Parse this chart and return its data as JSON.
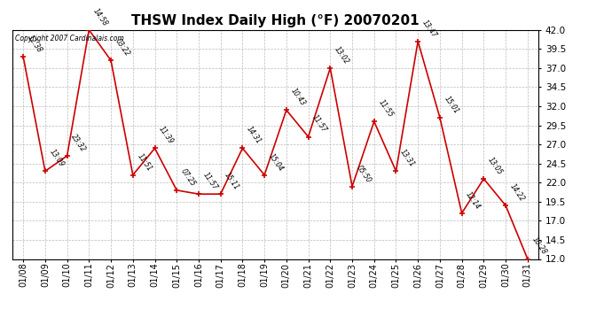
{
  "title": "THSW Index Daily High (°F) 20070201",
  "copyright": "Copyright 2007 Cardinalais.com",
  "dates": [
    "01/08",
    "01/09",
    "01/10",
    "01/11",
    "01/12",
    "01/13",
    "01/14",
    "01/15",
    "01/16",
    "01/17",
    "01/18",
    "01/19",
    "01/20",
    "01/21",
    "01/22",
    "01/23",
    "01/24",
    "01/25",
    "01/26",
    "01/27",
    "01/28",
    "01/29",
    "01/30",
    "01/31"
  ],
  "values": [
    38.5,
    23.5,
    25.5,
    42.0,
    38.0,
    23.0,
    26.5,
    21.0,
    20.5,
    20.5,
    26.5,
    23.0,
    31.5,
    28.0,
    37.0,
    21.5,
    30.0,
    23.5,
    40.5,
    30.5,
    18.0,
    22.5,
    19.0,
    12.0
  ],
  "time_labels": [
    "12:38",
    "13:09",
    "23:32",
    "14:58",
    "03:22",
    "11:51",
    "11:39",
    "07:25",
    "11:57",
    "15:11",
    "14:31",
    "15:04",
    "10:43",
    "11:57",
    "13:02",
    "05:50",
    "11:55",
    "13:31",
    "13:47",
    "15:01",
    "12:14",
    "13:05",
    "14:22",
    "10:28"
  ],
  "line_color": "#cc0000",
  "marker_color": "#cc0000",
  "background_color": "#ffffff",
  "grid_color": "#bbbbbb",
  "title_fontsize": 11,
  "ylim": [
    12.0,
    42.0
  ],
  "yticks": [
    12.0,
    14.5,
    17.0,
    19.5,
    22.0,
    24.5,
    27.0,
    29.5,
    32.0,
    34.5,
    37.0,
    39.5,
    42.0
  ]
}
